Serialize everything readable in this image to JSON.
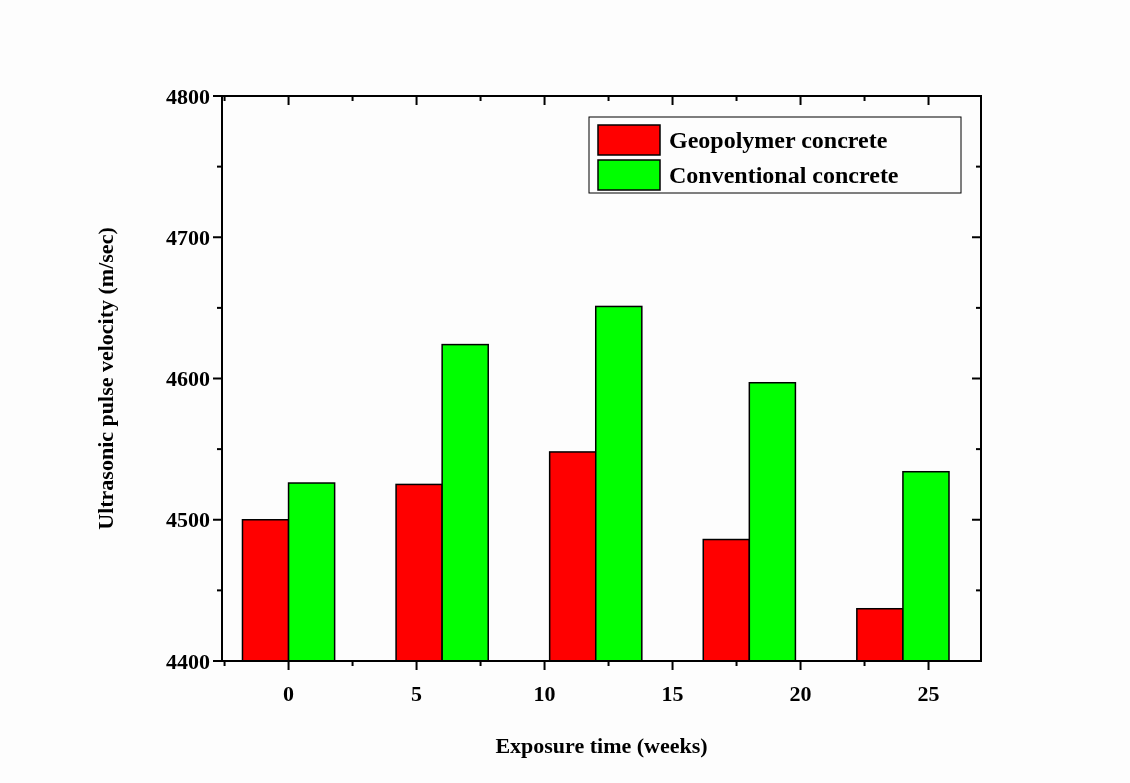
{
  "chart_data": {
    "type": "bar",
    "xlabel": "Exposure time (weeks)",
    "ylabel": "Ultrasonic pulse velocity (m/sec)",
    "x": [
      0,
      6,
      12,
      18,
      24
    ],
    "series": [
      {
        "name": "Geopolymer concrete",
        "color": "#ff0000",
        "values": [
          4500,
          4525,
          4548,
          4486,
          4437
        ]
      },
      {
        "name": "Conventional concrete",
        "color": "#00ff00",
        "values": [
          4526,
          4624,
          4651,
          4597,
          4534
        ]
      }
    ],
    "xlim": [
      -2.6,
      27.05
    ],
    "ylim": [
      4400,
      4800
    ],
    "xticks": [
      {
        "value": -2.5,
        "label": null
      },
      0,
      {
        "value": 2.5,
        "label": null
      },
      5,
      {
        "value": 7.5,
        "label": null
      },
      10,
      {
        "value": 12.5,
        "label": null
      },
      15,
      {
        "value": 17.5,
        "label": null
      },
      20,
      {
        "value": 22.5,
        "label": null
      },
      25
    ],
    "yticks": [
      4400,
      {
        "value": 4450,
        "label": null
      },
      4500,
      {
        "value": 4550,
        "label": null
      },
      4600,
      {
        "value": 4650,
        "label": null
      },
      4700,
      {
        "value": 4750,
        "label": null
      },
      4800
    ],
    "legend": "top right",
    "grid": false
  }
}
